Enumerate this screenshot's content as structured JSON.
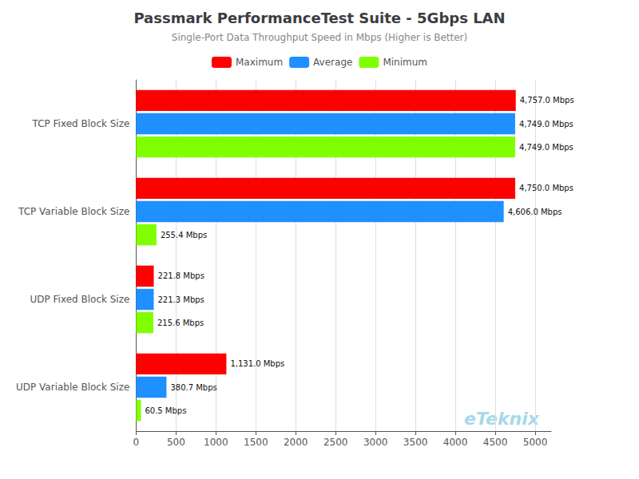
{
  "chart_data": {
    "type": "bar",
    "orientation": "horizontal",
    "title": "Passmark PerformanceTest Suite - 5Gbps LAN",
    "subtitle": "Single-Port Data Throughput Speed in Mbps (Higher is Better)",
    "annotation": "eTeknix",
    "categories": [
      "TCP Fixed Block Size",
      "TCP Variable Block Size",
      "UDP Fixed Block Size",
      "UDP Variable Block Size"
    ],
    "series": [
      {
        "name": "Maximum",
        "color": "#ff0000",
        "values": [
          4757.0,
          4750.0,
          221.8,
          1131.0
        ],
        "value_labels": [
          "4,757.0 Mbps",
          "4,750.0 Mbps",
          "221.8 Mbps",
          "1,131.0 Mbps"
        ]
      },
      {
        "name": "Average",
        "color": "#1e90ff",
        "values": [
          4749.0,
          4606.0,
          221.3,
          380.7
        ],
        "value_labels": [
          "4,749.0 Mbps",
          "4,606.0 Mbps",
          "221.3 Mbps",
          "380.7 Mbps"
        ]
      },
      {
        "name": "Minimum",
        "color": "#80ff00",
        "values": [
          4749.0,
          255.4,
          215.6,
          60.5
        ],
        "value_labels": [
          "4,749.0 Mbps",
          "255.4 Mbps",
          "215.6 Mbps",
          "60.5 Mbps"
        ]
      }
    ],
    "xlim": [
      0,
      5200
    ],
    "xticks": [
      0,
      500,
      1000,
      1500,
      2000,
      2500,
      3000,
      3500,
      4000,
      4500,
      5000
    ],
    "grid": true,
    "legend": "top",
    "data_labels": true
  }
}
